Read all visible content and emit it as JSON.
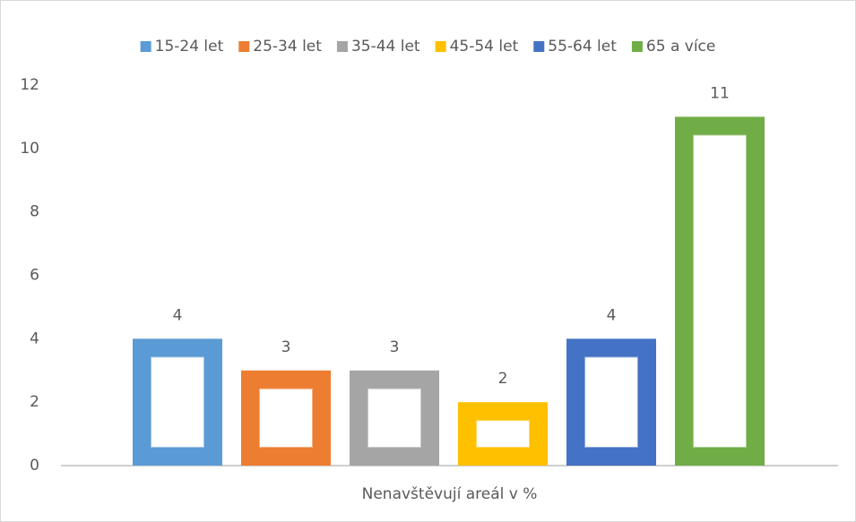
{
  "chart_data": {
    "type": "bar",
    "categories": [
      "Nenavštěvují areál v %"
    ],
    "series": [
      {
        "name": "15-24 let",
        "color": "#5b9bd5",
        "values": [
          4
        ]
      },
      {
        "name": "25-34 let",
        "color": "#ed7d31",
        "values": [
          3
        ]
      },
      {
        "name": "35-44 let",
        "color": "#a5a5a5",
        "values": [
          3
        ]
      },
      {
        "name": "45-54 let",
        "color": "#ffc000",
        "values": [
          2
        ]
      },
      {
        "name": "55-64 let",
        "color": "#4472c4",
        "values": [
          4
        ]
      },
      {
        "name": "65 a více",
        "color": "#70ad47",
        "values": [
          11
        ]
      }
    ],
    "ylim": [
      0,
      12
    ],
    "yticks": [
      0,
      2,
      4,
      6,
      8,
      10,
      12
    ],
    "grid": false,
    "legend": "top",
    "data_labels": true
  }
}
